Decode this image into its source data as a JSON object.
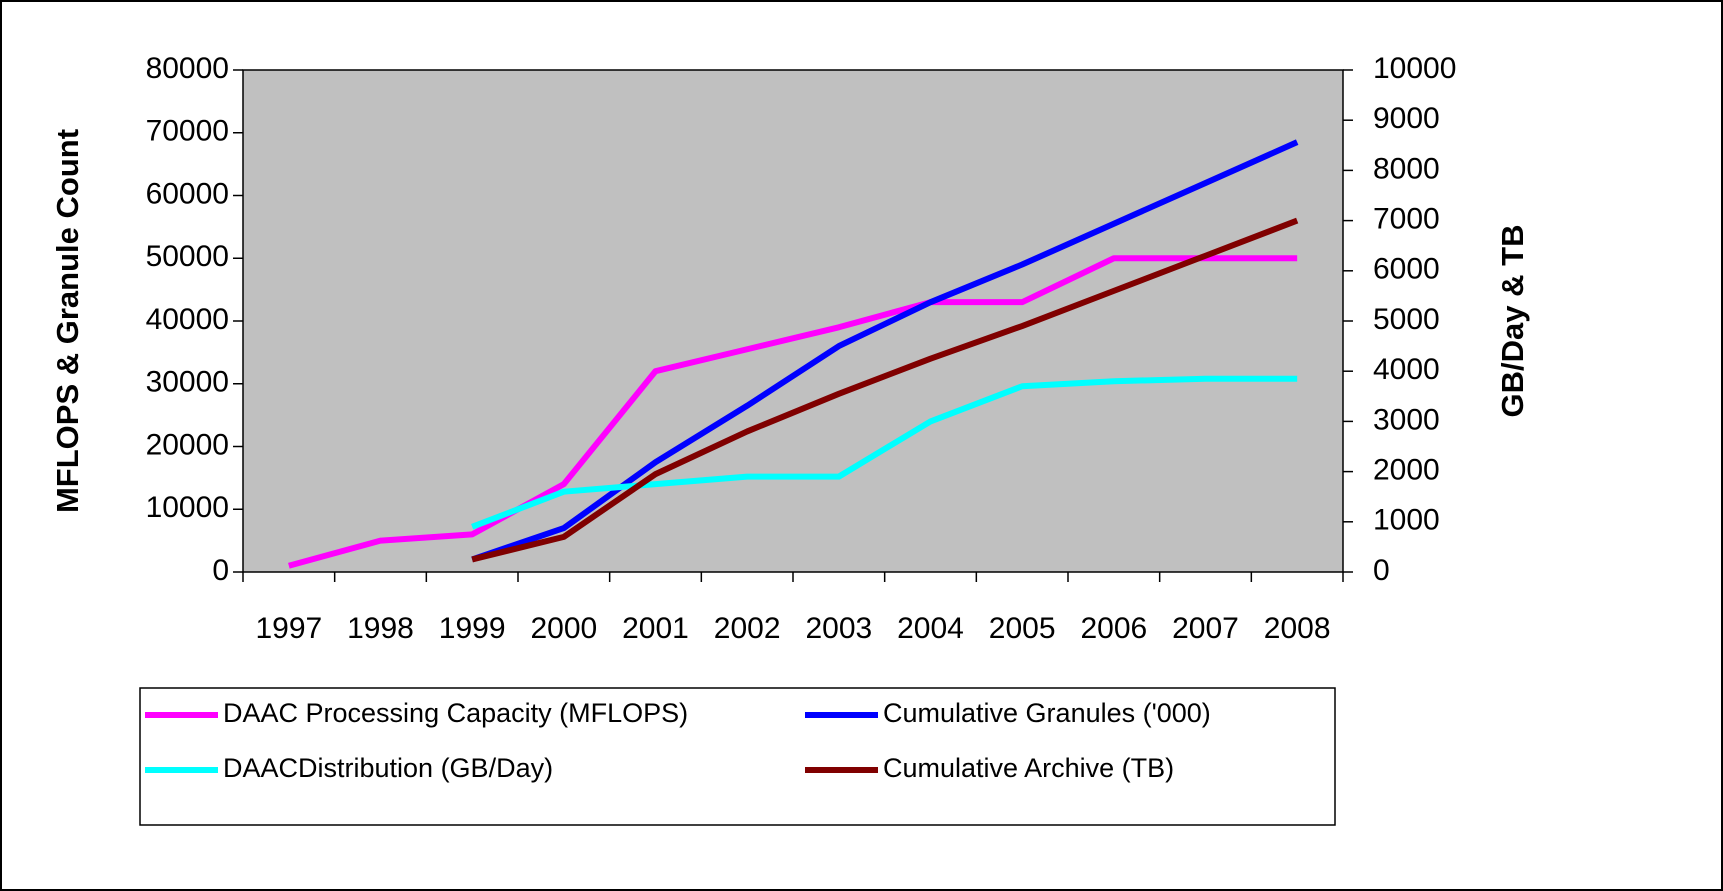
{
  "chart_data": {
    "type": "line",
    "categories": [
      "1997",
      "1998",
      "1999",
      "2000",
      "2001",
      "2002",
      "2003",
      "2004",
      "2005",
      "2006",
      "2007",
      "2008"
    ],
    "ylabel": "MFLOPS & Granule Count",
    "y2label": "GB/Day & TB",
    "ylim": [
      0,
      80000
    ],
    "yticks": [
      0,
      10000,
      20000,
      30000,
      40000,
      50000,
      60000,
      70000,
      80000
    ],
    "y2lim": [
      0,
      10000
    ],
    "y2ticks": [
      0,
      1000,
      2000,
      3000,
      4000,
      5000,
      6000,
      7000,
      8000,
      9000,
      10000
    ],
    "legend": "bottom",
    "series": [
      {
        "name": "DAAC Processing Capacity (MFLOPS)",
        "color": "#ff00ff",
        "values": [
          1000,
          5000,
          6000,
          14000,
          32000,
          35500,
          39000,
          43000,
          43000,
          50000,
          50000,
          50000
        ]
      },
      {
        "name": "Cumulative Granules ('000)",
        "color": "#0000ff",
        "values": [
          null,
          null,
          2000,
          7000,
          17500,
          26500,
          36000,
          43000,
          49000,
          55500,
          62000,
          68500
        ]
      },
      {
        "name": "DAACDistribution (GB/Day)",
        "color": "#00ffff",
        "axis": "y2",
        "values": [
          null,
          null,
          900,
          1600,
          1750,
          1900,
          1900,
          3000,
          3700,
          3800,
          3850,
          3850
        ]
      },
      {
        "name": "Cumulative Archive (TB)",
        "color": "#800000",
        "axis": "y2",
        "values": [
          null,
          null,
          250,
          700,
          1950,
          2800,
          3550,
          4250,
          4900,
          5600,
          6300,
          7000
        ]
      }
    ]
  }
}
